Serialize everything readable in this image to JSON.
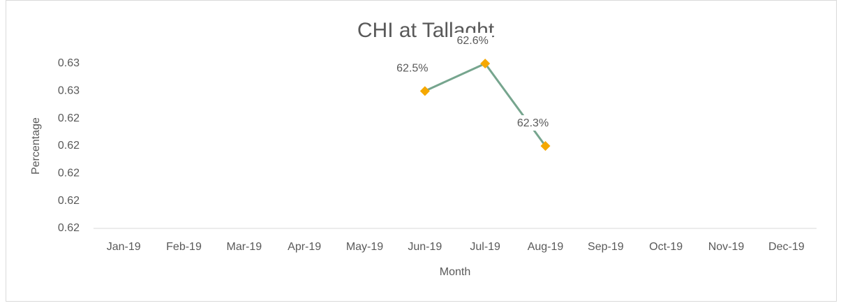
{
  "chart_data": {
    "type": "line",
    "title": "CHI at Tallaght",
    "x_label": "Month",
    "y_label": "Percentage",
    "categories": [
      "Jan-19",
      "Feb-19",
      "Mar-19",
      "Apr-19",
      "May-19",
      "Jun-19",
      "Jul-19",
      "Aug-19",
      "Sep-19",
      "Oct-19",
      "Nov-19",
      "Dec-19"
    ],
    "series": [
      {
        "name": "CHI",
        "color": "#76a58e",
        "marker_color": "#f5a800",
        "values": [
          null,
          null,
          null,
          null,
          null,
          0.625,
          0.626,
          0.623,
          null,
          null,
          null,
          null
        ],
        "value_labels": [
          null,
          null,
          null,
          null,
          null,
          "62.5%",
          "62.6%",
          "62.3%",
          null,
          null,
          null,
          null
        ]
      }
    ],
    "ylim": [
      0.62,
      0.626
    ],
    "yticks": [
      {
        "value": 0.62,
        "label": "0.62"
      },
      {
        "value": 0.621,
        "label": "0.62"
      },
      {
        "value": 0.622,
        "label": "0.62"
      },
      {
        "value": 0.623,
        "label": "0.62"
      },
      {
        "value": 0.624,
        "label": "0.62"
      },
      {
        "value": 0.625,
        "label": "0.63"
      },
      {
        "value": 0.626,
        "label": "0.63"
      }
    ],
    "grid": false
  }
}
